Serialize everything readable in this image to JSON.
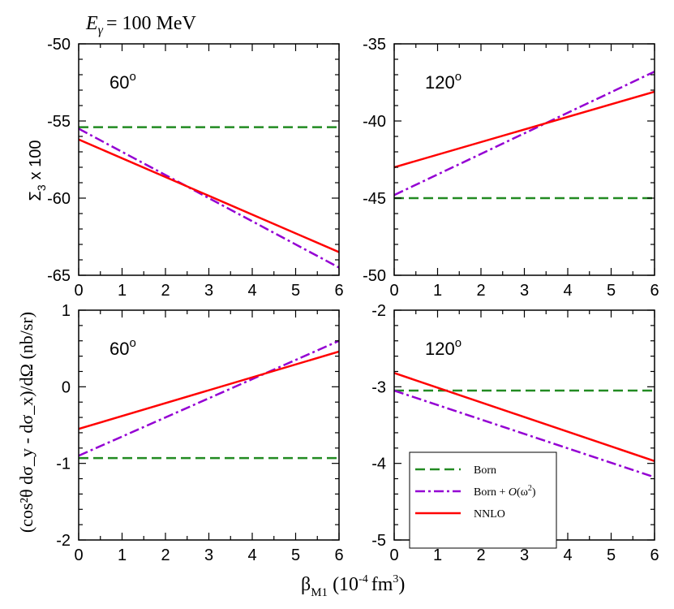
{
  "header": {
    "energy_label": "E",
    "energy_sub": "γ",
    "energy_value": "= 100 MeV"
  },
  "axes": {
    "shared_xlabel": "β",
    "shared_xlabel_sub": "M1",
    "shared_xlabel_units": "(10",
    "shared_xlabel_units_exp1": "-4",
    "shared_xlabel_units_mid": "fm",
    "shared_xlabel_units_exp2": "3",
    "shared_xlabel_units_end": ")",
    "top_ylabel": "Σ",
    "top_ylabel_sub": "3",
    "top_ylabel_rest": "x 100",
    "bottom_ylabel": "(cos²θ dσ_y - dσ_x)/dΩ (nb/sr)"
  },
  "colors": {
    "Born": "#228b22",
    "Born + O(ω²)": "#9400d3",
    "NNLO": "#ff0000"
  },
  "legend": {
    "entries": [
      {
        "key": "Born",
        "text": "Born"
      },
      {
        "key": "Born + O(ω²)",
        "text_prefix": "Born + ",
        "text_math": "O",
        "text_paren": "(ω",
        "text_exp": "2",
        "text_close": ")"
      },
      {
        "key": "NNLO",
        "text": "NNLO"
      }
    ]
  },
  "chart_data": [
    {
      "type": "line",
      "panel": "top-left",
      "angle_label": "60",
      "angle_sup": "o",
      "xlim": [
        0,
        6
      ],
      "ylim": [
        -65,
        -50
      ],
      "xticks": [
        0,
        1,
        2,
        3,
        4,
        5,
        6
      ],
      "yticks": [
        -65,
        -60,
        -55,
        -50
      ],
      "x": [
        0,
        6
      ],
      "series": [
        {
          "name": "Born",
          "values": [
            -55.4,
            -55.4
          ]
        },
        {
          "name": "Born + O(ω²)",
          "values": [
            -55.5,
            -64.5
          ]
        },
        {
          "name": "NNLO",
          "values": [
            -56.2,
            -63.5
          ]
        }
      ]
    },
    {
      "type": "line",
      "panel": "top-right",
      "angle_label": "120",
      "angle_sup": "o",
      "xlim": [
        0,
        6
      ],
      "ylim": [
        -50,
        -35
      ],
      "xticks": [
        0,
        1,
        2,
        3,
        4,
        5,
        6
      ],
      "yticks": [
        -50,
        -45,
        -40,
        -35
      ],
      "x": [
        0,
        6
      ],
      "series": [
        {
          "name": "Born",
          "values": [
            -45.0,
            -45.0
          ]
        },
        {
          "name": "Born + O(ω²)",
          "values": [
            -44.8,
            -36.8
          ]
        },
        {
          "name": "NNLO",
          "values": [
            -43.0,
            -38.1
          ]
        }
      ]
    },
    {
      "type": "line",
      "panel": "bottom-left",
      "angle_label": "60",
      "angle_sup": "o",
      "xlim": [
        0,
        6
      ],
      "ylim": [
        -2,
        1
      ],
      "xticks": [
        0,
        1,
        2,
        3,
        4,
        5,
        6
      ],
      "yticks": [
        -2,
        -1,
        0,
        1
      ],
      "x": [
        0,
        6
      ],
      "series": [
        {
          "name": "Born",
          "values": [
            -0.93,
            -0.93
          ]
        },
        {
          "name": "Born + O(ω²)",
          "values": [
            -0.9,
            0.6
          ]
        },
        {
          "name": "NNLO",
          "values": [
            -0.55,
            0.46
          ]
        }
      ]
    },
    {
      "type": "line",
      "panel": "bottom-right",
      "angle_label": "120",
      "angle_sup": "o",
      "xlim": [
        0,
        6
      ],
      "ylim": [
        -5,
        -2
      ],
      "xticks": [
        0,
        1,
        2,
        3,
        4,
        5,
        6
      ],
      "yticks": [
        -5,
        -4,
        -3,
        -2
      ],
      "x": [
        0,
        6
      ],
      "series": [
        {
          "name": "Born",
          "values": [
            -3.05,
            -3.05
          ]
        },
        {
          "name": "Born + O(ω²)",
          "values": [
            -3.05,
            -4.18
          ]
        },
        {
          "name": "NNLO",
          "values": [
            -2.82,
            -3.97
          ]
        }
      ]
    }
  ]
}
